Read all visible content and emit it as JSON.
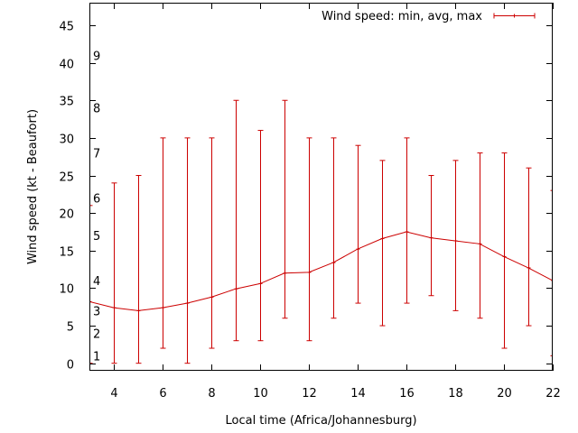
{
  "chart_data": {
    "type": "line",
    "title": "",
    "xlabel": "Local time (Africa/Johannesburg)",
    "ylabel": "Wind speed (kt - Beaufort)",
    "xlim": [
      3,
      22
    ],
    "ylim": [
      -1,
      48
    ],
    "x_ticks": [
      4,
      6,
      8,
      10,
      12,
      14,
      16,
      18,
      20,
      22
    ],
    "y_ticks": [
      0,
      5,
      10,
      15,
      20,
      25,
      30,
      35,
      40,
      45
    ],
    "beaufort_labels": [
      {
        "label": "1",
        "kt": 1
      },
      {
        "label": "2",
        "kt": 4
      },
      {
        "label": "3",
        "kt": 7
      },
      {
        "label": "4",
        "kt": 11
      },
      {
        "label": "5",
        "kt": 17
      },
      {
        "label": "6",
        "kt": 22
      },
      {
        "label": "7",
        "kt": 28
      },
      {
        "label": "8",
        "kt": 34
      },
      {
        "label": "9",
        "kt": 41
      }
    ],
    "grid": false,
    "legend_position": "top-right",
    "series": [
      {
        "name": "Wind speed: min, avg, max",
        "color": "#cc0000",
        "points": [
          {
            "x": 2,
            "min": 0,
            "avg": 8.2,
            "max": 21
          },
          {
            "x": 3,
            "min": 0,
            "avg": 8.2,
            "max": 21
          },
          {
            "x": 4,
            "min": 0,
            "avg": 7.4,
            "max": 24
          },
          {
            "x": 5,
            "min": 0,
            "avg": 7.0,
            "max": 25
          },
          {
            "x": 6,
            "min": 2,
            "avg": 7.4,
            "max": 30
          },
          {
            "x": 7,
            "min": 0,
            "avg": 8.0,
            "max": 30
          },
          {
            "x": 8,
            "min": 2,
            "avg": 8.8,
            "max": 30
          },
          {
            "x": 9,
            "min": 3,
            "avg": 9.9,
            "max": 35
          },
          {
            "x": 10,
            "min": 3,
            "avg": 10.6,
            "max": 31
          },
          {
            "x": 11,
            "min": 6,
            "avg": 12.0,
            "max": 35
          },
          {
            "x": 12,
            "min": 3,
            "avg": 12.1,
            "max": 30
          },
          {
            "x": 13,
            "min": 6,
            "avg": 13.4,
            "max": 30
          },
          {
            "x": 14,
            "min": 8,
            "avg": 15.2,
            "max": 29
          },
          {
            "x": 15,
            "min": 5,
            "avg": 16.6,
            "max": 27
          },
          {
            "x": 16,
            "min": 8,
            "avg": 17.5,
            "max": 30
          },
          {
            "x": 17,
            "min": 9,
            "avg": 16.7,
            "max": 25
          },
          {
            "x": 18,
            "min": 7,
            "avg": 16.3,
            "max": 27
          },
          {
            "x": 19,
            "min": 6,
            "avg": 15.9,
            "max": 28
          },
          {
            "x": 20,
            "min": 2,
            "avg": 14.2,
            "max": 28
          },
          {
            "x": 21,
            "min": 5,
            "avg": 12.7,
            "max": 26
          },
          {
            "x": 22,
            "min": 1,
            "avg": 11.0,
            "max": 23
          }
        ]
      }
    ]
  }
}
